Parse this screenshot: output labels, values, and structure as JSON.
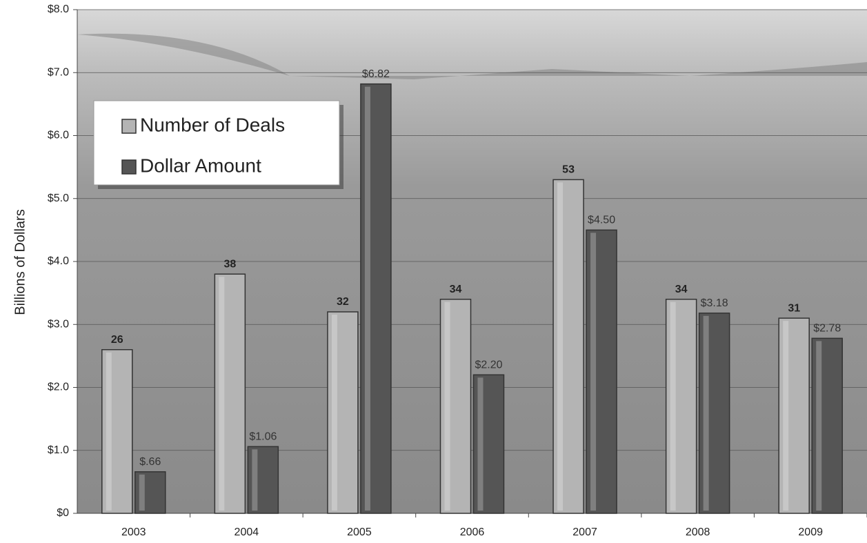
{
  "chart_data": {
    "type": "bar",
    "ylabel": "Billions of Dollars",
    "categories": [
      "2003",
      "2004",
      "2005",
      "2006",
      "2007",
      "2008",
      "2009"
    ],
    "series": [
      {
        "name": "Number of Deals",
        "color": "#b4b4b4",
        "axis": "y2",
        "values": [
          26,
          38,
          32,
          34,
          53,
          34,
          31
        ]
      },
      {
        "name": "Dollar Amount",
        "color": "#555555",
        "values": [
          0.66,
          1.06,
          6.82,
          2.2,
          4.5,
          3.18,
          2.78
        ],
        "value_labels": [
          "$.66",
          "$1.06",
          "$6.82",
          "$2.20",
          "$4.50",
          "$3.18",
          "$2.78"
        ]
      }
    ],
    "ylim": [
      0,
      8
    ],
    "yticks": [
      {
        "value": 0,
        "label": "$0"
      },
      {
        "value": 1,
        "label": "$1.0"
      },
      {
        "value": 2,
        "label": "$2.0"
      },
      {
        "value": 3,
        "label": "$3.0"
      },
      {
        "value": 4,
        "label": "$4.0"
      },
      {
        "value": 5,
        "label": "$5.0"
      },
      {
        "value": 6,
        "label": "$6.0"
      },
      {
        "value": 7,
        "label": "$7.0"
      },
      {
        "value": 8,
        "label": "$8.0"
      }
    ],
    "y2lim": [
      0,
      80
    ],
    "grid": true,
    "legend": "upper-left"
  }
}
